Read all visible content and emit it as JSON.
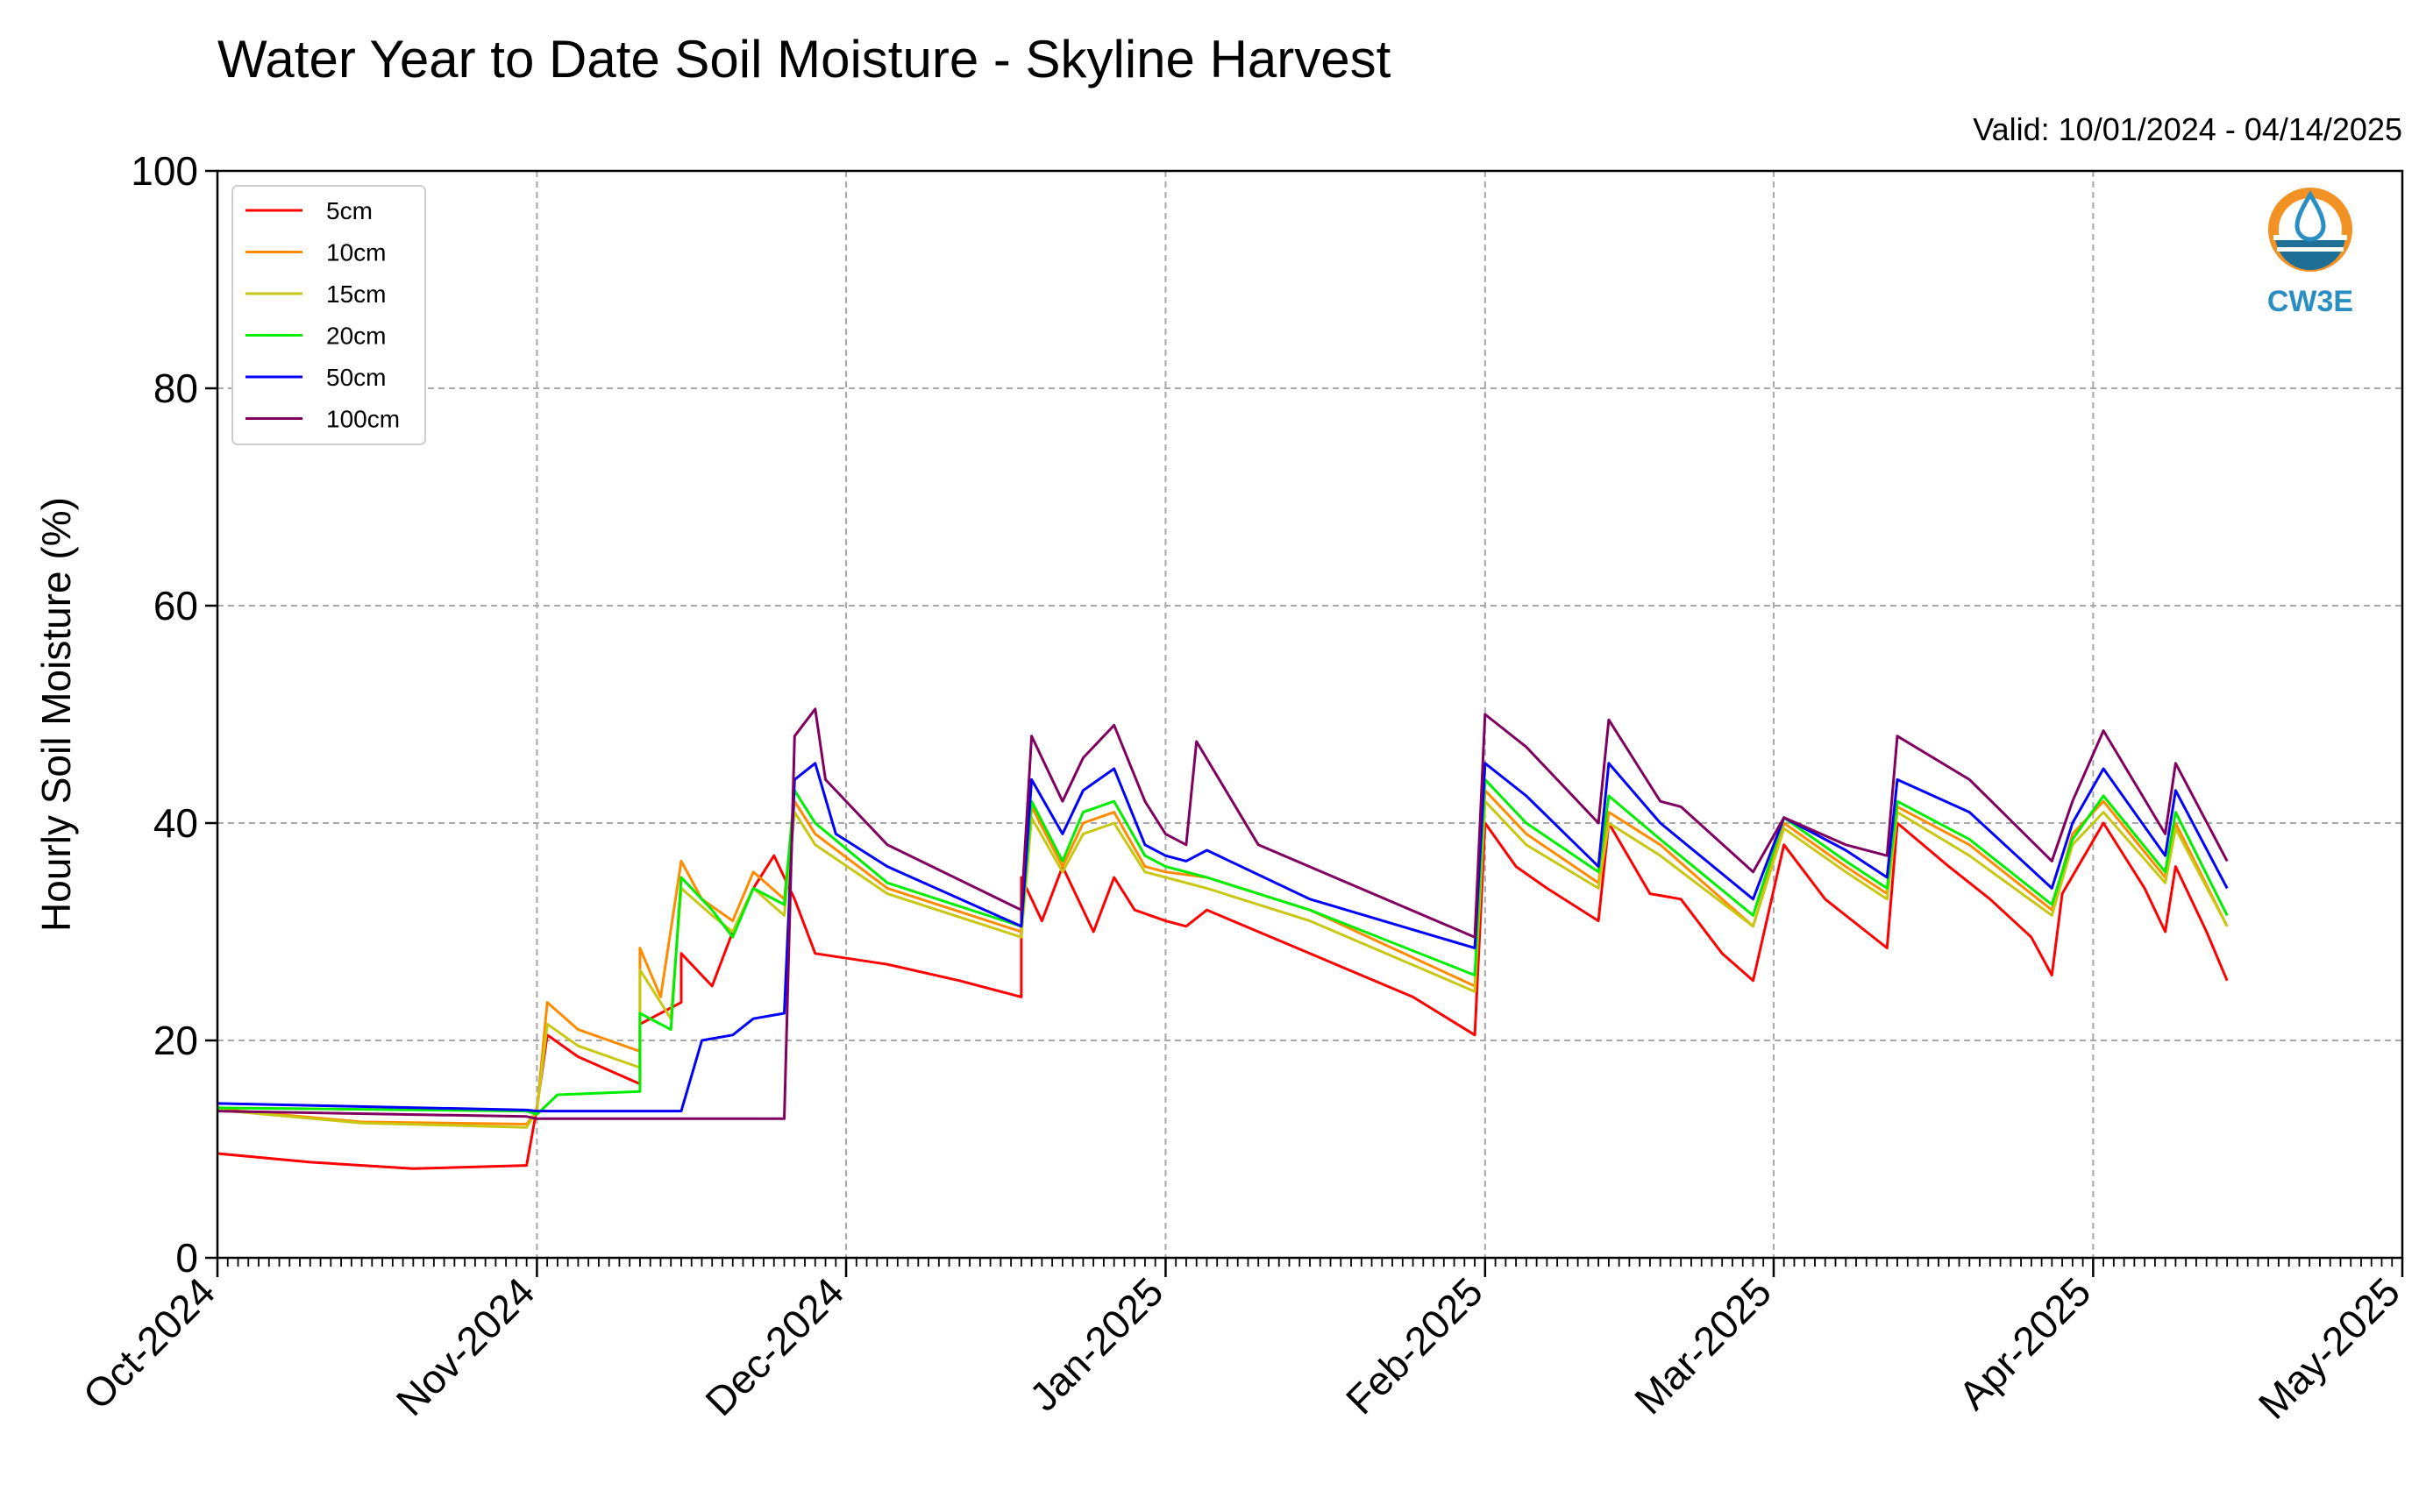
{
  "chart_data": {
    "type": "line",
    "title": "Water Year to Date Soil Moisture - Skyline Harvest",
    "valid_text": "Valid: 10/01/2024 - 04/14/2025",
    "ylabel": "Hourly Soil Moisture (%)",
    "xlabel": "",
    "ylim": [
      0,
      100
    ],
    "y_ticks": [
      0,
      20,
      40,
      60,
      80,
      100
    ],
    "x_range": [
      "2024-10-01",
      "2025-05-01"
    ],
    "x_ticks": [
      {
        "date": "2024-10-01",
        "label": "Oct-2024"
      },
      {
        "date": "2024-11-01",
        "label": "Nov-2024"
      },
      {
        "date": "2024-12-01",
        "label": "Dec-2024"
      },
      {
        "date": "2025-01-01",
        "label": "Jan-2025"
      },
      {
        "date": "2025-02-01",
        "label": "Feb-2025"
      },
      {
        "date": "2025-03-01",
        "label": "Mar-2025"
      },
      {
        "date": "2025-04-01",
        "label": "Apr-2025"
      },
      {
        "date": "2025-05-01",
        "label": "May-2025"
      }
    ],
    "grid": true,
    "legend_position": "top-left",
    "logo_text": "CW3E",
    "series": [
      {
        "name": "5cm",
        "color": "#ff0000",
        "points": [
          [
            "2024-10-01",
            9.6
          ],
          [
            "2024-10-10",
            8.8
          ],
          [
            "2024-10-20",
            8.2
          ],
          [
            "2024-10-31",
            8.5
          ],
          [
            "2024-11-01",
            13.8
          ],
          [
            "2024-11-02",
            20.5
          ],
          [
            "2024-11-05",
            18.5
          ],
          [
            "2024-11-11",
            16.0
          ],
          [
            "2024-11-11",
            21.5
          ],
          [
            "2024-11-15",
            23.5
          ],
          [
            "2024-11-15",
            28.0
          ],
          [
            "2024-11-18",
            25.0
          ],
          [
            "2024-11-20",
            30.0
          ],
          [
            "2024-11-22",
            34.0
          ],
          [
            "2024-11-24",
            37.0
          ],
          [
            "2024-11-26",
            33.0
          ],
          [
            "2024-11-28",
            28.0
          ],
          [
            "2024-12-05",
            27.0
          ],
          [
            "2024-12-12",
            25.5
          ],
          [
            "2024-12-18",
            24.0
          ],
          [
            "2024-12-18",
            35.0
          ],
          [
            "2024-12-20",
            31.0
          ],
          [
            "2024-12-22",
            36.0
          ],
          [
            "2024-12-25",
            30.0
          ],
          [
            "2024-12-27",
            35.0
          ],
          [
            "2024-12-29",
            32.0
          ],
          [
            "2025-01-01",
            31.0
          ],
          [
            "2025-01-03",
            30.5
          ],
          [
            "2025-01-05",
            32.0
          ],
          [
            "2025-01-15",
            28.0
          ],
          [
            "2025-01-25",
            24.0
          ],
          [
            "2025-01-31",
            20.5
          ],
          [
            "2025-02-01",
            40.0
          ],
          [
            "2025-02-04",
            36.0
          ],
          [
            "2025-02-07",
            34.0
          ],
          [
            "2025-02-12",
            31.0
          ],
          [
            "2025-02-13",
            40.0
          ],
          [
            "2025-02-17",
            33.5
          ],
          [
            "2025-02-20",
            33.0
          ],
          [
            "2025-02-24",
            28.0
          ],
          [
            "2025-02-27",
            25.5
          ],
          [
            "2025-03-02",
            38.0
          ],
          [
            "2025-03-06",
            33.0
          ],
          [
            "2025-03-10",
            30.0
          ],
          [
            "2025-03-12",
            28.5
          ],
          [
            "2025-03-13",
            40.0
          ],
          [
            "2025-03-18",
            36.0
          ],
          [
            "2025-03-22",
            33.0
          ],
          [
            "2025-03-26",
            29.5
          ],
          [
            "2025-03-28",
            26.0
          ],
          [
            "2025-03-29",
            33.5
          ],
          [
            "2025-04-02",
            40.0
          ],
          [
            "2025-04-06",
            34.0
          ],
          [
            "2025-04-08",
            30.0
          ],
          [
            "2025-04-09",
            36.0
          ],
          [
            "2025-04-12",
            30.0
          ],
          [
            "2025-04-14",
            25.5
          ]
        ]
      },
      {
        "name": "10cm",
        "color": "#ff8c00",
        "points": [
          [
            "2024-10-01",
            13.7
          ],
          [
            "2024-10-15",
            12.5
          ],
          [
            "2024-10-31",
            12.3
          ],
          [
            "2024-11-01",
            13.5
          ],
          [
            "2024-11-02",
            23.5
          ],
          [
            "2024-11-05",
            21.0
          ],
          [
            "2024-11-11",
            19.0
          ],
          [
            "2024-11-11",
            28.5
          ],
          [
            "2024-11-13",
            24.0
          ],
          [
            "2024-11-15",
            36.5
          ],
          [
            "2024-11-17",
            33.0
          ],
          [
            "2024-11-20",
            31.0
          ],
          [
            "2024-11-22",
            35.5
          ],
          [
            "2024-11-25",
            33.0
          ],
          [
            "2024-11-26",
            42.0
          ],
          [
            "2024-11-28",
            39.0
          ],
          [
            "2024-12-05",
            34.0
          ],
          [
            "2024-12-18",
            30.0
          ],
          [
            "2024-12-19",
            41.5
          ],
          [
            "2024-12-22",
            36.0
          ],
          [
            "2024-12-24",
            40.0
          ],
          [
            "2024-12-27",
            41.0
          ],
          [
            "2024-12-30",
            36.0
          ],
          [
            "2025-01-01",
            35.5
          ],
          [
            "2025-01-05",
            35.0
          ],
          [
            "2025-01-15",
            32.0
          ],
          [
            "2025-01-31",
            25.0
          ],
          [
            "2025-02-01",
            43.0
          ],
          [
            "2025-02-05",
            39.0
          ],
          [
            "2025-02-12",
            34.5
          ],
          [
            "2025-02-13",
            41.0
          ],
          [
            "2025-02-18",
            38.0
          ],
          [
            "2025-02-27",
            30.5
          ],
          [
            "2025-03-02",
            40.0
          ],
          [
            "2025-03-08",
            36.0
          ],
          [
            "2025-03-12",
            33.5
          ],
          [
            "2025-03-13",
            41.5
          ],
          [
            "2025-03-20",
            38.0
          ],
          [
            "2025-03-28",
            32.0
          ],
          [
            "2025-03-30",
            39.0
          ],
          [
            "2025-04-02",
            42.0
          ],
          [
            "2025-04-08",
            35.0
          ],
          [
            "2025-04-09",
            40.0
          ],
          [
            "2025-04-14",
            30.5
          ]
        ]
      },
      {
        "name": "15cm",
        "color": "#c8c814",
        "points": [
          [
            "2024-10-01",
            13.6
          ],
          [
            "2024-10-15",
            12.4
          ],
          [
            "2024-10-31",
            12.0
          ],
          [
            "2024-11-01",
            13.5
          ],
          [
            "2024-11-02",
            21.5
          ],
          [
            "2024-11-05",
            19.5
          ],
          [
            "2024-11-11",
            17.5
          ],
          [
            "2024-11-11",
            26.5
          ],
          [
            "2024-11-14",
            22.0
          ],
          [
            "2024-11-15",
            34.0
          ],
          [
            "2024-11-18",
            31.5
          ],
          [
            "2024-11-20",
            30.0
          ],
          [
            "2024-11-22",
            34.0
          ],
          [
            "2024-11-25",
            31.5
          ],
          [
            "2024-11-26",
            41.0
          ],
          [
            "2024-11-28",
            38.0
          ],
          [
            "2024-12-05",
            33.5
          ],
          [
            "2024-12-18",
            29.5
          ],
          [
            "2024-12-19",
            40.5
          ],
          [
            "2024-12-22",
            35.5
          ],
          [
            "2024-12-24",
            39.0
          ],
          [
            "2024-12-27",
            40.0
          ],
          [
            "2024-12-30",
            35.5
          ],
          [
            "2025-01-01",
            35.0
          ],
          [
            "2025-01-05",
            34.0
          ],
          [
            "2025-01-15",
            31.0
          ],
          [
            "2025-01-31",
            24.5
          ],
          [
            "2025-02-01",
            42.0
          ],
          [
            "2025-02-05",
            38.0
          ],
          [
            "2025-02-12",
            34.0
          ],
          [
            "2025-02-13",
            40.0
          ],
          [
            "2025-02-18",
            37.0
          ],
          [
            "2025-02-27",
            30.5
          ],
          [
            "2025-03-02",
            39.5
          ],
          [
            "2025-03-08",
            35.5
          ],
          [
            "2025-03-12",
            33.0
          ],
          [
            "2025-03-13",
            41.0
          ],
          [
            "2025-03-20",
            37.0
          ],
          [
            "2025-03-28",
            31.5
          ],
          [
            "2025-03-30",
            38.0
          ],
          [
            "2025-04-02",
            41.0
          ],
          [
            "2025-04-08",
            34.5
          ],
          [
            "2025-04-09",
            39.5
          ],
          [
            "2025-04-14",
            30.5
          ]
        ]
      },
      {
        "name": "20cm",
        "color": "#00ee00",
        "points": [
          [
            "2024-10-01",
            13.8
          ],
          [
            "2024-10-31",
            13.5
          ],
          [
            "2024-11-01",
            13.2
          ],
          [
            "2024-11-03",
            15.0
          ],
          [
            "2024-11-11",
            15.3
          ],
          [
            "2024-11-11",
            22.5
          ],
          [
            "2024-11-14",
            21.0
          ],
          [
            "2024-11-15",
            35.0
          ],
          [
            "2024-11-18",
            32.0
          ],
          [
            "2024-11-20",
            29.5
          ],
          [
            "2024-11-22",
            34.0
          ],
          [
            "2024-11-25",
            32.5
          ],
          [
            "2024-11-26",
            43.0
          ],
          [
            "2024-11-28",
            40.0
          ],
          [
            "2024-12-05",
            34.5
          ],
          [
            "2024-12-18",
            30.5
          ],
          [
            "2024-12-19",
            42.0
          ],
          [
            "2024-12-22",
            36.5
          ],
          [
            "2024-12-24",
            41.0
          ],
          [
            "2024-12-27",
            42.0
          ],
          [
            "2024-12-30",
            37.0
          ],
          [
            "2025-01-01",
            36.0
          ],
          [
            "2025-01-05",
            35.0
          ],
          [
            "2025-01-15",
            32.0
          ],
          [
            "2025-01-31",
            26.0
          ],
          [
            "2025-02-01",
            44.0
          ],
          [
            "2025-02-05",
            40.0
          ],
          [
            "2025-02-12",
            35.5
          ],
          [
            "2025-02-13",
            42.5
          ],
          [
            "2025-02-18",
            38.5
          ],
          [
            "2025-02-27",
            31.5
          ],
          [
            "2025-03-02",
            40.5
          ],
          [
            "2025-03-08",
            36.5
          ],
          [
            "2025-03-12",
            34.0
          ],
          [
            "2025-03-13",
            42.0
          ],
          [
            "2025-03-20",
            38.5
          ],
          [
            "2025-03-28",
            32.5
          ],
          [
            "2025-03-30",
            38.5
          ],
          [
            "2025-04-02",
            42.5
          ],
          [
            "2025-04-08",
            35.5
          ],
          [
            "2025-04-09",
            41.0
          ],
          [
            "2025-04-14",
            31.5
          ]
        ]
      },
      {
        "name": "50cm",
        "color": "#0000ff",
        "points": [
          [
            "2024-10-01",
            14.2
          ],
          [
            "2024-10-31",
            13.6
          ],
          [
            "2024-11-01",
            13.5
          ],
          [
            "2024-11-15",
            13.5
          ],
          [
            "2024-11-17",
            20.0
          ],
          [
            "2024-11-20",
            20.5
          ],
          [
            "2024-11-22",
            22.0
          ],
          [
            "2024-11-25",
            22.5
          ],
          [
            "2024-11-26",
            44.0
          ],
          [
            "2024-11-28",
            45.5
          ],
          [
            "2024-11-30",
            39.0
          ],
          [
            "2024-12-05",
            36.0
          ],
          [
            "2024-12-18",
            30.5
          ],
          [
            "2024-12-19",
            44.0
          ],
          [
            "2024-12-22",
            39.0
          ],
          [
            "2024-12-24",
            43.0
          ],
          [
            "2024-12-27",
            45.0
          ],
          [
            "2024-12-30",
            38.0
          ],
          [
            "2025-01-01",
            37.0
          ],
          [
            "2025-01-03",
            36.5
          ],
          [
            "2025-01-05",
            37.5
          ],
          [
            "2025-01-15",
            33.0
          ],
          [
            "2025-01-31",
            28.5
          ],
          [
            "2025-02-01",
            45.5
          ],
          [
            "2025-02-05",
            42.5
          ],
          [
            "2025-02-12",
            36.0
          ],
          [
            "2025-02-13",
            45.5
          ],
          [
            "2025-02-18",
            40.0
          ],
          [
            "2025-02-27",
            33.0
          ],
          [
            "2025-03-02",
            40.5
          ],
          [
            "2025-03-08",
            37.5
          ],
          [
            "2025-03-12",
            35.0
          ],
          [
            "2025-03-13",
            44.0
          ],
          [
            "2025-03-20",
            41.0
          ],
          [
            "2025-03-28",
            34.0
          ],
          [
            "2025-03-30",
            40.0
          ],
          [
            "2025-04-02",
            45.0
          ],
          [
            "2025-04-08",
            37.0
          ],
          [
            "2025-04-09",
            43.0
          ],
          [
            "2025-04-14",
            34.0
          ]
        ]
      },
      {
        "name": "100cm",
        "color": "#800060",
        "points": [
          [
            "2024-10-01",
            13.5
          ],
          [
            "2024-10-31",
            13.0
          ],
          [
            "2024-11-01",
            12.8
          ],
          [
            "2024-11-25",
            12.8
          ],
          [
            "2024-11-26",
            48.0
          ],
          [
            "2024-11-28",
            50.5
          ],
          [
            "2024-11-29",
            44.0
          ],
          [
            "2024-12-05",
            38.0
          ],
          [
            "2024-12-18",
            32.0
          ],
          [
            "2024-12-19",
            48.0
          ],
          [
            "2024-12-22",
            42.0
          ],
          [
            "2024-12-24",
            46.0
          ],
          [
            "2024-12-27",
            49.0
          ],
          [
            "2024-12-30",
            42.0
          ],
          [
            "2025-01-01",
            39.0
          ],
          [
            "2025-01-03",
            38.0
          ],
          [
            "2025-01-04",
            47.5
          ],
          [
            "2025-01-10",
            38.0
          ],
          [
            "2025-01-31",
            29.5
          ],
          [
            "2025-02-01",
            50.0
          ],
          [
            "2025-02-05",
            47.0
          ],
          [
            "2025-02-12",
            40.0
          ],
          [
            "2025-02-13",
            49.5
          ],
          [
            "2025-02-18",
            42.0
          ],
          [
            "2025-02-20",
            41.5
          ],
          [
            "2025-02-27",
            35.5
          ],
          [
            "2025-03-02",
            40.5
          ],
          [
            "2025-03-08",
            38.0
          ],
          [
            "2025-03-12",
            37.0
          ],
          [
            "2025-03-13",
            48.0
          ],
          [
            "2025-03-20",
            44.0
          ],
          [
            "2025-03-28",
            36.5
          ],
          [
            "2025-03-30",
            42.0
          ],
          [
            "2025-04-02",
            48.5
          ],
          [
            "2025-04-08",
            39.0
          ],
          [
            "2025-04-09",
            45.5
          ],
          [
            "2025-04-14",
            36.5
          ]
        ]
      }
    ]
  }
}
